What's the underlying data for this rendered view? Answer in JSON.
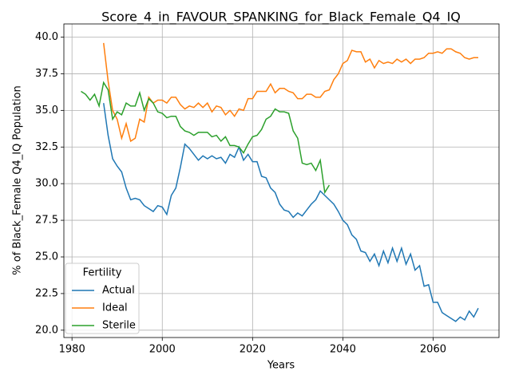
{
  "chart_data": {
    "type": "line",
    "title": "Score_4_in_FAVOUR_SPANKING_for_Black_Female_Q4_IQ",
    "xlabel": "Years",
    "ylabel": "% of Black_Female Q4_IQ Population",
    "legend_title": "Fertility",
    "legend": "lower left",
    "grid": true,
    "xlim": [
      1978.2,
      2074.6
    ],
    "ylim": [
      19.5,
      40.9
    ],
    "xticks": [
      1980,
      2000,
      2020,
      2040,
      2060
    ],
    "yticks": [
      {
        "value": 20,
        "label": "20.0"
      },
      {
        "value": 22.5,
        "label": "22.5"
      },
      {
        "value": 25,
        "label": "25.0"
      },
      {
        "value": 27.5,
        "label": "27.5"
      },
      {
        "value": 30,
        "label": "30.0"
      },
      {
        "value": 32.5,
        "label": "32.5"
      },
      {
        "value": 35,
        "label": "35.0"
      },
      {
        "value": 37.5,
        "label": "37.5"
      },
      {
        "value": 40,
        "label": "40.0"
      }
    ],
    "series": [
      {
        "name": "Actual",
        "color": "#1f77b4",
        "x": [
          1987,
          1988,
          1989,
          1990,
          1991,
          1992,
          1993,
          1994,
          1995,
          1996,
          1997,
          1998,
          1999,
          2000,
          2001,
          2002,
          2003,
          2004,
          2005,
          2006,
          2007,
          2008,
          2009,
          2010,
          2011,
          2012,
          2013,
          2014,
          2015,
          2016,
          2017,
          2018,
          2019,
          2020,
          2021,
          2022,
          2023,
          2024,
          2025,
          2026,
          2027,
          2028,
          2029,
          2030,
          2031,
          2032,
          2033,
          2034,
          2035,
          2036,
          2037,
          2038,
          2039,
          2040,
          2041,
          2042,
          2043,
          2044,
          2045,
          2046,
          2047,
          2048,
          2049,
          2050,
          2051,
          2052,
          2053,
          2054,
          2055,
          2056,
          2057,
          2058,
          2059,
          2060,
          2061,
          2062,
          2063,
          2064,
          2065,
          2066,
          2067,
          2068,
          2069,
          2070
        ],
        "values": [
          35.5,
          33.3,
          31.7,
          31.2,
          30.8,
          29.7,
          28.9,
          29.0,
          28.9,
          28.5,
          28.3,
          28.1,
          28.5,
          28.4,
          27.9,
          29.2,
          29.7,
          31.1,
          32.7,
          32.4,
          32.0,
          31.6,
          31.9,
          31.7,
          31.9,
          31.7,
          31.8,
          31.4,
          32.0,
          31.8,
          32.5,
          31.6,
          32.0,
          31.5,
          31.5,
          30.5,
          30.4,
          29.7,
          29.4,
          28.6,
          28.2,
          28.1,
          27.7,
          28.0,
          27.8,
          28.2,
          28.6,
          28.9,
          29.5,
          29.2,
          28.9,
          28.6,
          28.1,
          27.5,
          27.2,
          26.5,
          26.2,
          25.4,
          25.3,
          24.7,
          25.2,
          24.4,
          25.4,
          24.6,
          25.6,
          24.7,
          25.6,
          24.5,
          25.2,
          24.1,
          24.4,
          23.0,
          23.1,
          21.9,
          21.9,
          21.2,
          21.0,
          20.8,
          20.6,
          20.9,
          20.7,
          21.3,
          20.9,
          21.5
        ]
      },
      {
        "name": "Ideal",
        "color": "#ff7f0e",
        "x": [
          1987,
          1988,
          1989,
          1990,
          1991,
          1992,
          1993,
          1994,
          1995,
          1996,
          1997,
          1998,
          1999,
          2000,
          2001,
          2002,
          2003,
          2004,
          2005,
          2006,
          2007,
          2008,
          2009,
          2010,
          2011,
          2012,
          2013,
          2014,
          2015,
          2016,
          2017,
          2018,
          2019,
          2020,
          2021,
          2022,
          2023,
          2024,
          2025,
          2026,
          2027,
          2028,
          2029,
          2030,
          2031,
          2032,
          2033,
          2034,
          2035,
          2036,
          2037,
          2038,
          2039,
          2040,
          2041,
          2042,
          2043,
          2044,
          2045,
          2046,
          2047,
          2048,
          2049,
          2050,
          2051,
          2052,
          2053,
          2054,
          2055,
          2056,
          2057,
          2058,
          2059,
          2060,
          2061,
          2062,
          2063,
          2064,
          2065,
          2066,
          2067,
          2068,
          2069,
          2070
        ],
        "values": [
          39.6,
          37.0,
          35.0,
          34.4,
          33.1,
          34.1,
          32.9,
          33.1,
          34.4,
          34.2,
          35.9,
          35.5,
          35.7,
          35.7,
          35.5,
          35.9,
          35.9,
          35.4,
          35.1,
          35.3,
          35.2,
          35.5,
          35.2,
          35.5,
          34.9,
          35.3,
          35.2,
          34.7,
          35.0,
          34.6,
          35.1,
          35.0,
          35.8,
          35.8,
          36.3,
          36.3,
          36.3,
          36.8,
          36.2,
          36.5,
          36.5,
          36.3,
          36.2,
          35.8,
          35.8,
          36.1,
          36.1,
          35.9,
          35.9,
          36.3,
          36.4,
          37.1,
          37.5,
          38.2,
          38.4,
          39.1,
          39.0,
          39.0,
          38.3,
          38.5,
          37.9,
          38.4,
          38.2,
          38.3,
          38.2,
          38.5,
          38.3,
          38.5,
          38.2,
          38.5,
          38.5,
          38.6,
          38.9,
          38.9,
          39.0,
          38.9,
          39.2,
          39.2,
          39.0,
          38.9,
          38.6,
          38.5,
          38.6,
          38.6
        ]
      },
      {
        "name": "Sterile",
        "color": "#2ca02c",
        "x": [
          1982,
          1983,
          1984,
          1985,
          1986,
          1987,
          1988,
          1989,
          1990,
          1991,
          1992,
          1993,
          1994,
          1995,
          1996,
          1997,
          1998,
          1999,
          2000,
          2001,
          2002,
          2003,
          2004,
          2005,
          2006,
          2007,
          2008,
          2009,
          2010,
          2011,
          2012,
          2013,
          2014,
          2015,
          2016,
          2017,
          2018,
          2019,
          2020,
          2021,
          2022,
          2023,
          2024,
          2025,
          2026,
          2027,
          2028,
          2029,
          2030,
          2031,
          2032,
          2033,
          2034,
          2035,
          2036,
          2037
        ],
        "values": [
          36.3,
          36.1,
          35.7,
          36.1,
          35.3,
          36.9,
          36.4,
          34.4,
          34.9,
          34.7,
          35.5,
          35.3,
          35.3,
          36.2,
          35.0,
          35.8,
          35.5,
          34.9,
          34.8,
          34.5,
          34.6,
          34.6,
          33.9,
          33.6,
          33.5,
          33.3,
          33.5,
          33.5,
          33.5,
          33.2,
          33.3,
          32.9,
          33.2,
          32.6,
          32.6,
          32.5,
          32.1,
          32.7,
          33.2,
          33.3,
          33.7,
          34.4,
          34.6,
          35.1,
          34.9,
          34.9,
          34.8,
          33.6,
          33.1,
          31.4,
          31.3,
          31.4,
          30.9,
          31.6,
          29.4,
          29.9
        ]
      }
    ]
  }
}
